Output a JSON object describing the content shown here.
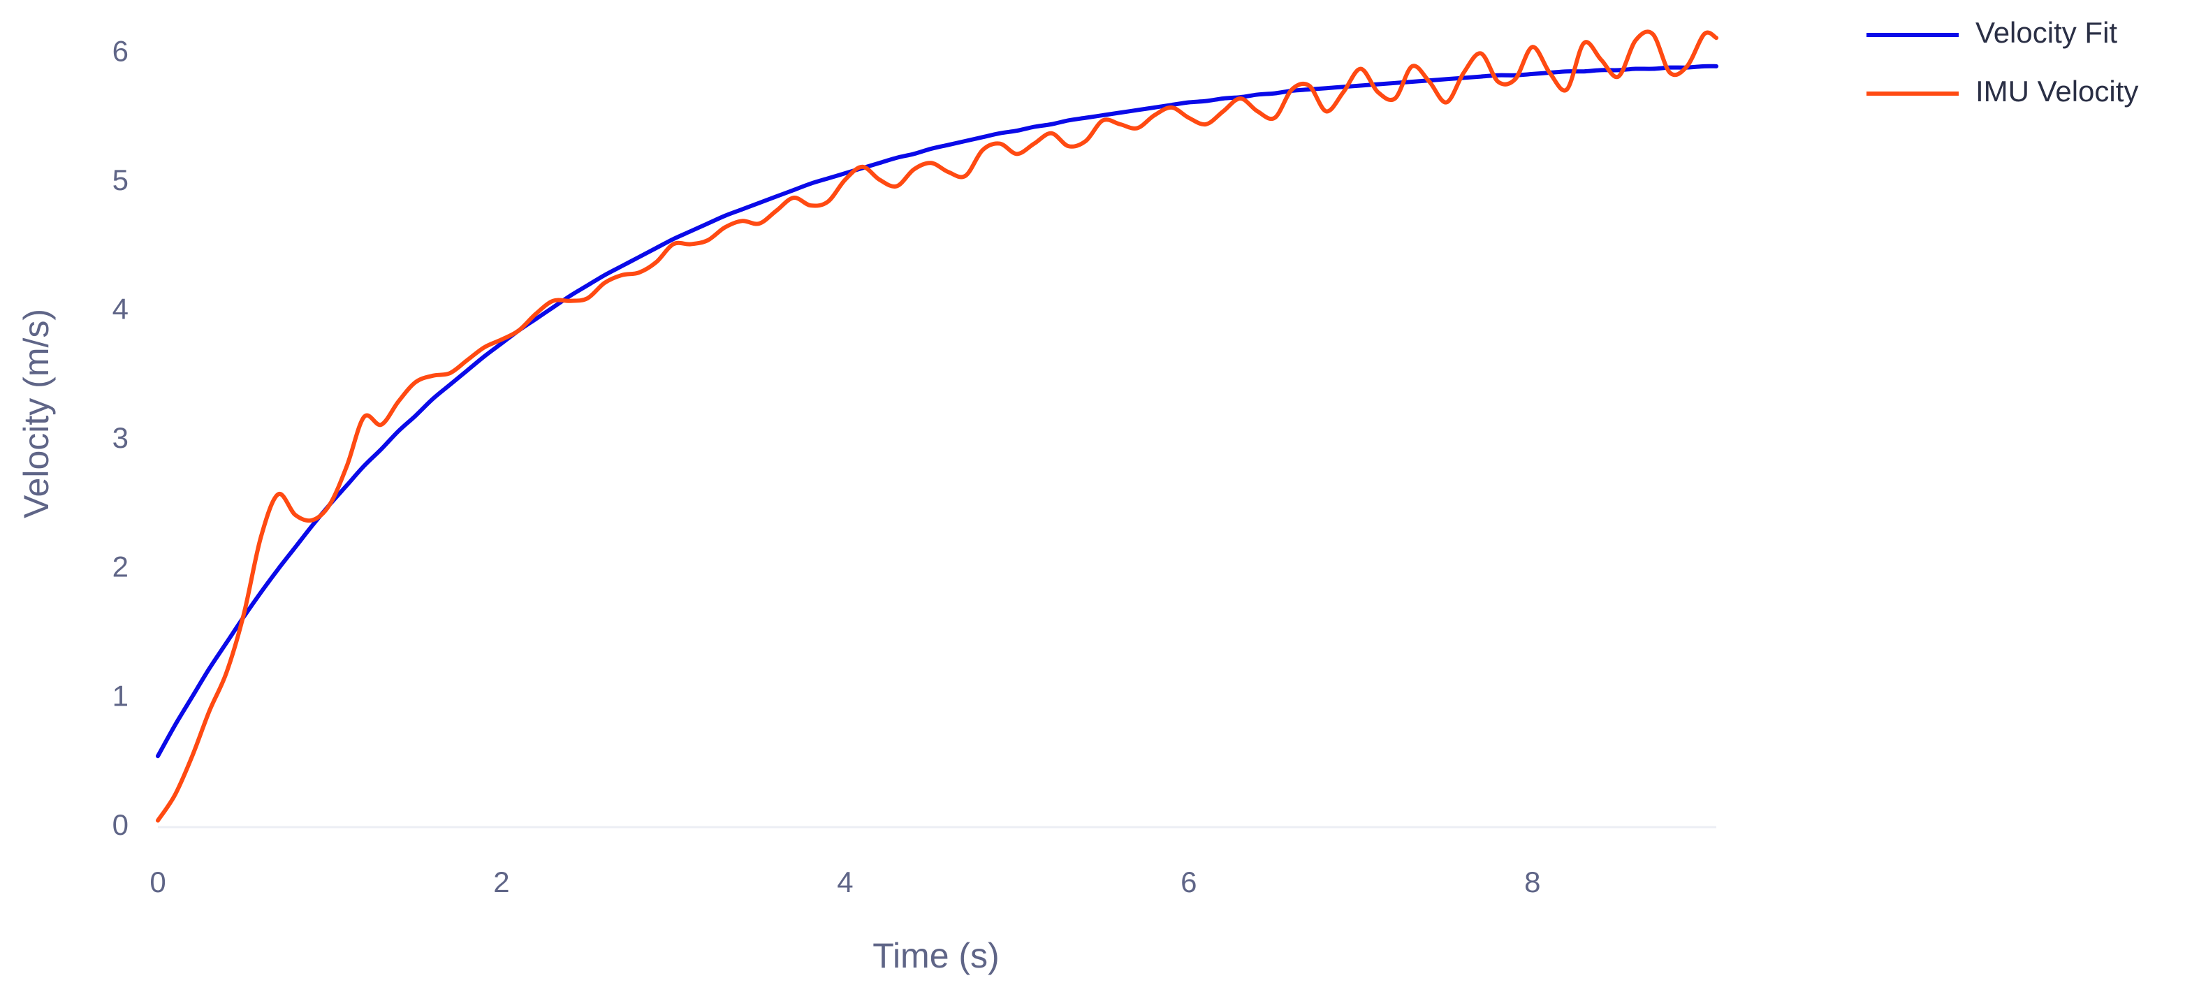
{
  "chart_data": {
    "type": "line",
    "x_label": "Time (s)",
    "y_label": "Velocity (m/s)",
    "x": [
      0,
      0.1,
      0.2,
      0.3,
      0.4,
      0.5,
      0.6,
      0.7,
      0.8,
      0.9,
      1.0,
      1.1,
      1.2,
      1.3,
      1.4,
      1.5,
      1.6,
      1.7,
      1.8,
      1.9,
      2.0,
      2.1,
      2.2,
      2.3,
      2.4,
      2.5,
      2.6,
      2.7,
      2.8,
      2.9,
      3.0,
      3.1,
      3.2,
      3.3,
      3.4,
      3.5,
      3.6,
      3.7,
      3.8,
      3.9,
      4.0,
      4.1,
      4.2,
      4.3,
      4.4,
      4.5,
      4.6,
      4.7,
      4.8,
      4.9,
      5.0,
      5.1,
      5.2,
      5.3,
      5.4,
      5.5,
      5.6,
      5.7,
      5.8,
      5.9,
      6.0,
      6.1,
      6.2,
      6.3,
      6.4,
      6.5,
      6.6,
      6.7,
      6.8,
      6.9,
      7.0,
      7.1,
      7.2,
      7.3,
      7.4,
      7.5,
      7.6,
      7.7,
      7.8,
      7.9,
      8.0,
      8.1,
      8.2,
      8.3,
      8.4,
      8.5,
      8.6,
      8.7,
      8.8,
      8.9,
      9.0,
      9.07
    ],
    "series": [
      {
        "name": "Velocity Fit",
        "color": "#0a0ae8",
        "values": [
          0.55,
          0.79,
          1.01,
          1.23,
          1.43,
          1.63,
          1.82,
          2.0,
          2.17,
          2.34,
          2.5,
          2.65,
          2.8,
          2.93,
          3.07,
          3.19,
          3.32,
          3.43,
          3.54,
          3.65,
          3.75,
          3.85,
          3.94,
          4.03,
          4.12,
          4.2,
          4.28,
          4.35,
          4.42,
          4.49,
          4.56,
          4.62,
          4.68,
          4.74,
          4.79,
          4.84,
          4.89,
          4.94,
          4.99,
          5.03,
          5.07,
          5.11,
          5.15,
          5.19,
          5.22,
          5.26,
          5.29,
          5.32,
          5.35,
          5.38,
          5.4,
          5.43,
          5.45,
          5.48,
          5.5,
          5.52,
          5.54,
          5.56,
          5.58,
          5.6,
          5.62,
          5.63,
          5.65,
          5.66,
          5.68,
          5.69,
          5.71,
          5.72,
          5.73,
          5.74,
          5.75,
          5.76,
          5.77,
          5.78,
          5.79,
          5.8,
          5.81,
          5.82,
          5.83,
          5.83,
          5.84,
          5.85,
          5.86,
          5.86,
          5.87,
          5.87,
          5.88,
          5.88,
          5.89,
          5.89,
          5.9,
          5.9
        ]
      },
      {
        "name": "IMU Velocity",
        "color": "#ff4a12",
        "values": [
          0.05,
          0.25,
          0.55,
          0.9,
          1.2,
          1.65,
          2.25,
          2.58,
          2.42,
          2.38,
          2.5,
          2.8,
          3.18,
          3.12,
          3.3,
          3.45,
          3.5,
          3.52,
          3.62,
          3.72,
          3.78,
          3.85,
          3.98,
          4.08,
          4.08,
          4.1,
          4.22,
          4.28,
          4.3,
          4.38,
          4.52,
          4.52,
          4.55,
          4.65,
          4.7,
          4.68,
          4.78,
          4.88,
          4.82,
          4.85,
          5.02,
          5.12,
          5.02,
          4.97,
          5.1,
          5.15,
          5.08,
          5.05,
          5.25,
          5.3,
          5.22,
          5.3,
          5.38,
          5.28,
          5.32,
          5.48,
          5.45,
          5.42,
          5.52,
          5.58,
          5.5,
          5.45,
          5.55,
          5.65,
          5.55,
          5.5,
          5.72,
          5.75,
          5.55,
          5.7,
          5.88,
          5.7,
          5.65,
          5.9,
          5.78,
          5.62,
          5.85,
          6.0,
          5.78,
          5.8,
          6.05,
          5.85,
          5.72,
          6.08,
          5.95,
          5.82,
          6.1,
          6.15,
          5.85,
          5.9,
          6.15,
          6.12
        ]
      }
    ],
    "xlim": [
      0,
      9.07
    ],
    "ylim": [
      -0.05,
      6.3
    ],
    "xticks": [
      0,
      2,
      4,
      6,
      8
    ],
    "yticks": [
      0,
      1,
      2,
      3,
      4,
      5,
      6
    ],
    "grid": false,
    "legend": "top-right"
  }
}
